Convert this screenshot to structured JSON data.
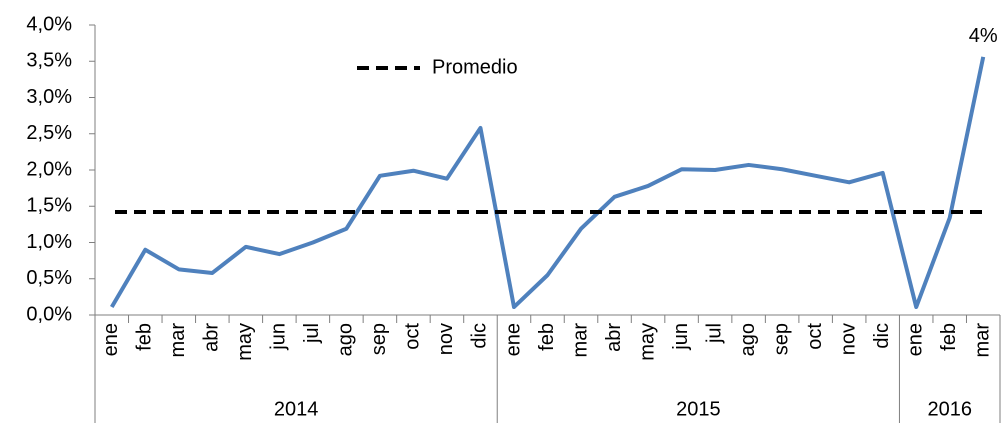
{
  "chart_data": {
    "type": "line",
    "category_groups": [
      {
        "label": "2014",
        "categories": [
          "ene",
          "feb",
          "mar",
          "abr",
          "may",
          "jun",
          "jul",
          "ago",
          "sep",
          "oct",
          "nov",
          "dic"
        ]
      },
      {
        "label": "2015",
        "categories": [
          "ene",
          "feb",
          "mar",
          "abr",
          "may",
          "jun",
          "jul",
          "ago",
          "sep",
          "oct",
          "nov",
          "dic"
        ]
      },
      {
        "label": "2016",
        "categories": [
          "ene",
          "feb",
          "mar"
        ]
      }
    ],
    "series": [
      {
        "color": "#4f81bd",
        "values": [
          0.11,
          0.9,
          0.63,
          0.58,
          0.94,
          0.84,
          1.0,
          1.19,
          1.92,
          1.99,
          1.88,
          2.58,
          0.11,
          0.55,
          1.19,
          1.63,
          1.78,
          2.01,
          2.0,
          2.07,
          2.01,
          1.92,
          1.83,
          1.96,
          0.11,
          1.34,
          3.56
        ],
        "value_labels": [
          null,
          null,
          null,
          null,
          null,
          null,
          null,
          null,
          null,
          null,
          null,
          null,
          null,
          null,
          null,
          null,
          null,
          null,
          null,
          null,
          null,
          null,
          null,
          null,
          null,
          null,
          "4%"
        ]
      }
    ],
    "reference_lines": [
      {
        "name": "Promedio",
        "value": 1.42,
        "color": "#000000",
        "style": "dashed"
      }
    ],
    "ylim": [
      0,
      4
    ],
    "yticks": [
      {
        "value": 0,
        "label": "0,0%"
      },
      {
        "value": 0.5,
        "label": "0,5%"
      },
      {
        "value": 1,
        "label": "1,0%"
      },
      {
        "value": 1.5,
        "label": "1,5%"
      },
      {
        "value": 2,
        "label": "2,0%"
      },
      {
        "value": 2.5,
        "label": "2,5%"
      },
      {
        "value": 3,
        "label": "3,0%"
      },
      {
        "value": 3.5,
        "label": "3,5%"
      },
      {
        "value": 4,
        "label": "4,0%"
      }
    ],
    "grid": false,
    "legend": "top"
  }
}
